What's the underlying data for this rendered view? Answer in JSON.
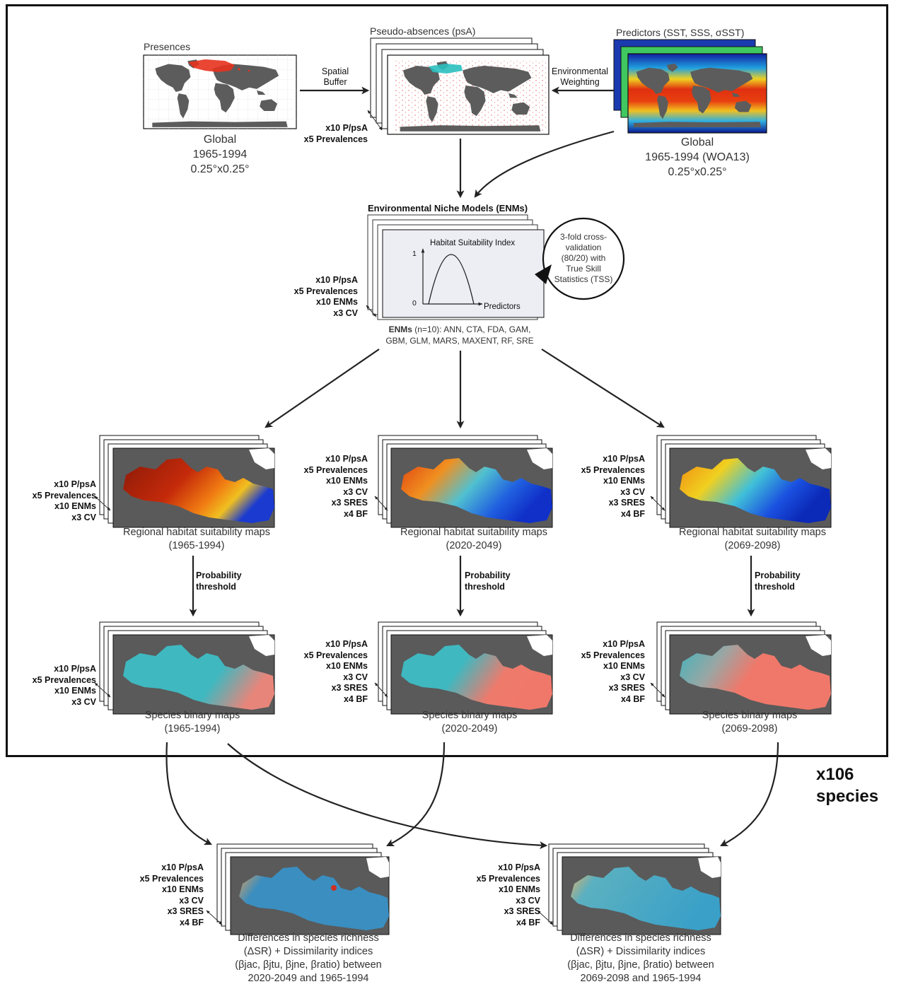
{
  "presences": {
    "title": "Presences",
    "caption": [
      "Global",
      "1965-1994",
      "0.25°x0.25°"
    ]
  },
  "pseudo_absences": {
    "title": "Pseudo-absences (psA)",
    "list": [
      "x10 P/psA",
      "x5 Prevalences"
    ]
  },
  "predictors": {
    "title": "Predictors (SST, SSS, σSST)",
    "caption": [
      "Global",
      "1965-1994 (WOA13)",
      "0.25°x0.25°"
    ]
  },
  "arrows": {
    "spatial_buffer": [
      "Spatial",
      "Buffer"
    ],
    "environmental_weighting": [
      "Environmental",
      "Weighting"
    ],
    "probability_threshold": [
      "Probability",
      "threshold"
    ]
  },
  "enm": {
    "title": "Environmental Niche Models (ENMs)",
    "graph_title": "Habitat Suitability Index",
    "y_top": "1",
    "y_bottom": "0",
    "x_label": "Predictors",
    "list": [
      "x10 P/psA",
      "x5 Prevalences",
      "x10 ENMs",
      "x3 CV"
    ],
    "desc_bold": "ENMs",
    "desc_line1": " (n=10): ANN, CTA, FDA, GAM,",
    "desc_line2": "GBM, GLM, MARS, MAXENT, RF, SRE",
    "cv_note": [
      "3-fold cross-",
      "validation",
      "(80/20) with",
      "True Skill",
      "Statistics (TSS)"
    ]
  },
  "suitability": [
    {
      "list": [
        "x10 P/psA",
        "x5 Prevalences",
        "x10 ENMs",
        "x3 CV"
      ],
      "caption": [
        "Regional habitat suitability maps",
        "(1965-1994)"
      ]
    },
    {
      "list": [
        "x10 P/psA",
        "x5 Prevalences",
        "x10 ENMs",
        "x3 CV",
        "x3 SRES",
        "x4 BF"
      ],
      "caption": [
        "Regional habitat suitability maps",
        "(2020-2049)"
      ]
    },
    {
      "list": [
        "x10 P/psA",
        "x5 Prevalences",
        "x10 ENMs",
        "x3 CV",
        "x3 SRES",
        "x4 BF"
      ],
      "caption": [
        "Regional habitat suitability maps",
        "(2069-2098)"
      ]
    }
  ],
  "binary": [
    {
      "list": [
        "x10 P/psA",
        "x5 Prevalences",
        "x10 ENMs",
        "x3 CV"
      ],
      "caption": [
        "Species binary maps",
        "(1965-1994)"
      ]
    },
    {
      "list": [
        "x10 P/psA",
        "x5 Prevalences",
        "x10 ENMs",
        "x3 CV",
        "x3 SRES",
        "x4 BF"
      ],
      "caption": [
        "Species binary maps",
        "(2020-2049)"
      ]
    },
    {
      "list": [
        "x10 P/psA",
        "x5 Prevalences",
        "x10 ENMs",
        "x3 CV",
        "x3 SRES",
        "x4 BF"
      ],
      "caption": [
        "Species binary maps",
        "(2069-2098)"
      ]
    }
  ],
  "species_count": [
    "x106",
    "species"
  ],
  "differences": [
    {
      "list": [
        "x10 P/psA",
        "x5 Prevalences",
        "x10 ENMs",
        "x3 CV",
        "x3 SRES",
        "x4 BF"
      ],
      "caption": [
        "Differences in species richness",
        "(ΔSR) + Dissimilarity indices",
        "(βjac, βjtu, βjne, βratio) between",
        "2020-2049 and 1965-1994"
      ]
    },
    {
      "list": [
        "x10 P/psA",
        "x5 Prevalences",
        "x10 ENMs",
        "x3 CV",
        "x3 SRES",
        "x4 BF"
      ],
      "caption": [
        "Differences in species richness",
        "(ΔSR) + Dissimilarity indices",
        "(βjac, βjtu, βjne, βratio) between",
        "2069-2098 and 1965-1994"
      ]
    }
  ],
  "colors": {
    "land": "#5c5c5c",
    "presence": "#e8321e",
    "teal": "#3fb8c0",
    "salmon": "#f0786a",
    "frame": "#111111"
  }
}
